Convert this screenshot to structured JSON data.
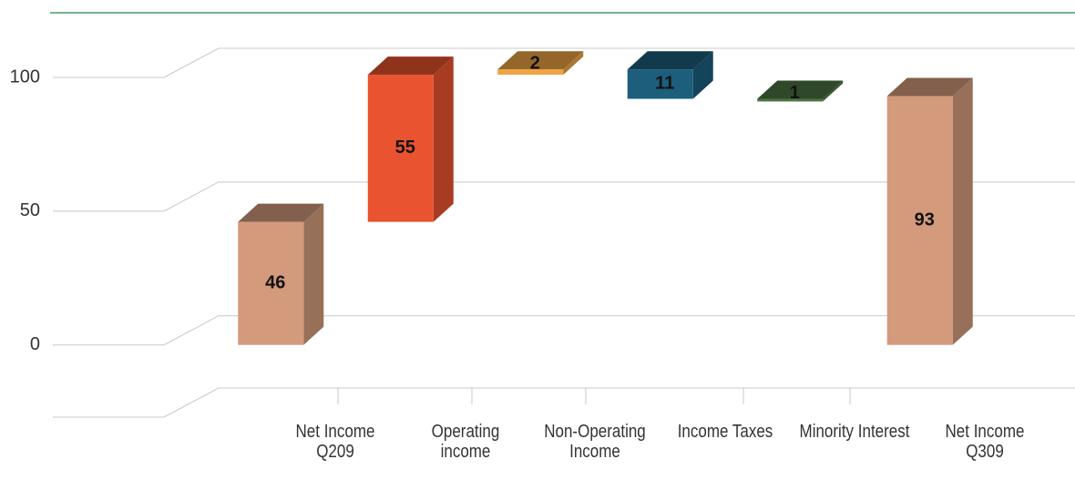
{
  "chart_data": {
    "type": "waterfall",
    "categories": [
      "Net Income Q209",
      "Operating income",
      "Non-Operating Income",
      "Income Taxes",
      "Minority Interest",
      "Net Income Q309"
    ],
    "values": [
      46,
      55,
      2,
      -11,
      -1,
      93
    ],
    "value_labels": [
      "46",
      "55",
      "2",
      "11",
      "1",
      "93"
    ],
    "is_total": [
      true,
      false,
      false,
      false,
      false,
      true
    ],
    "colors": [
      "#d39a7c",
      "#e9532f",
      "#f0a444",
      "#1c5e7c",
      "#4c7444",
      "#d39a7c"
    ],
    "ylim": [
      -27,
      100
    ],
    "yticks": [
      0,
      50,
      100
    ],
    "grid": true
  }
}
